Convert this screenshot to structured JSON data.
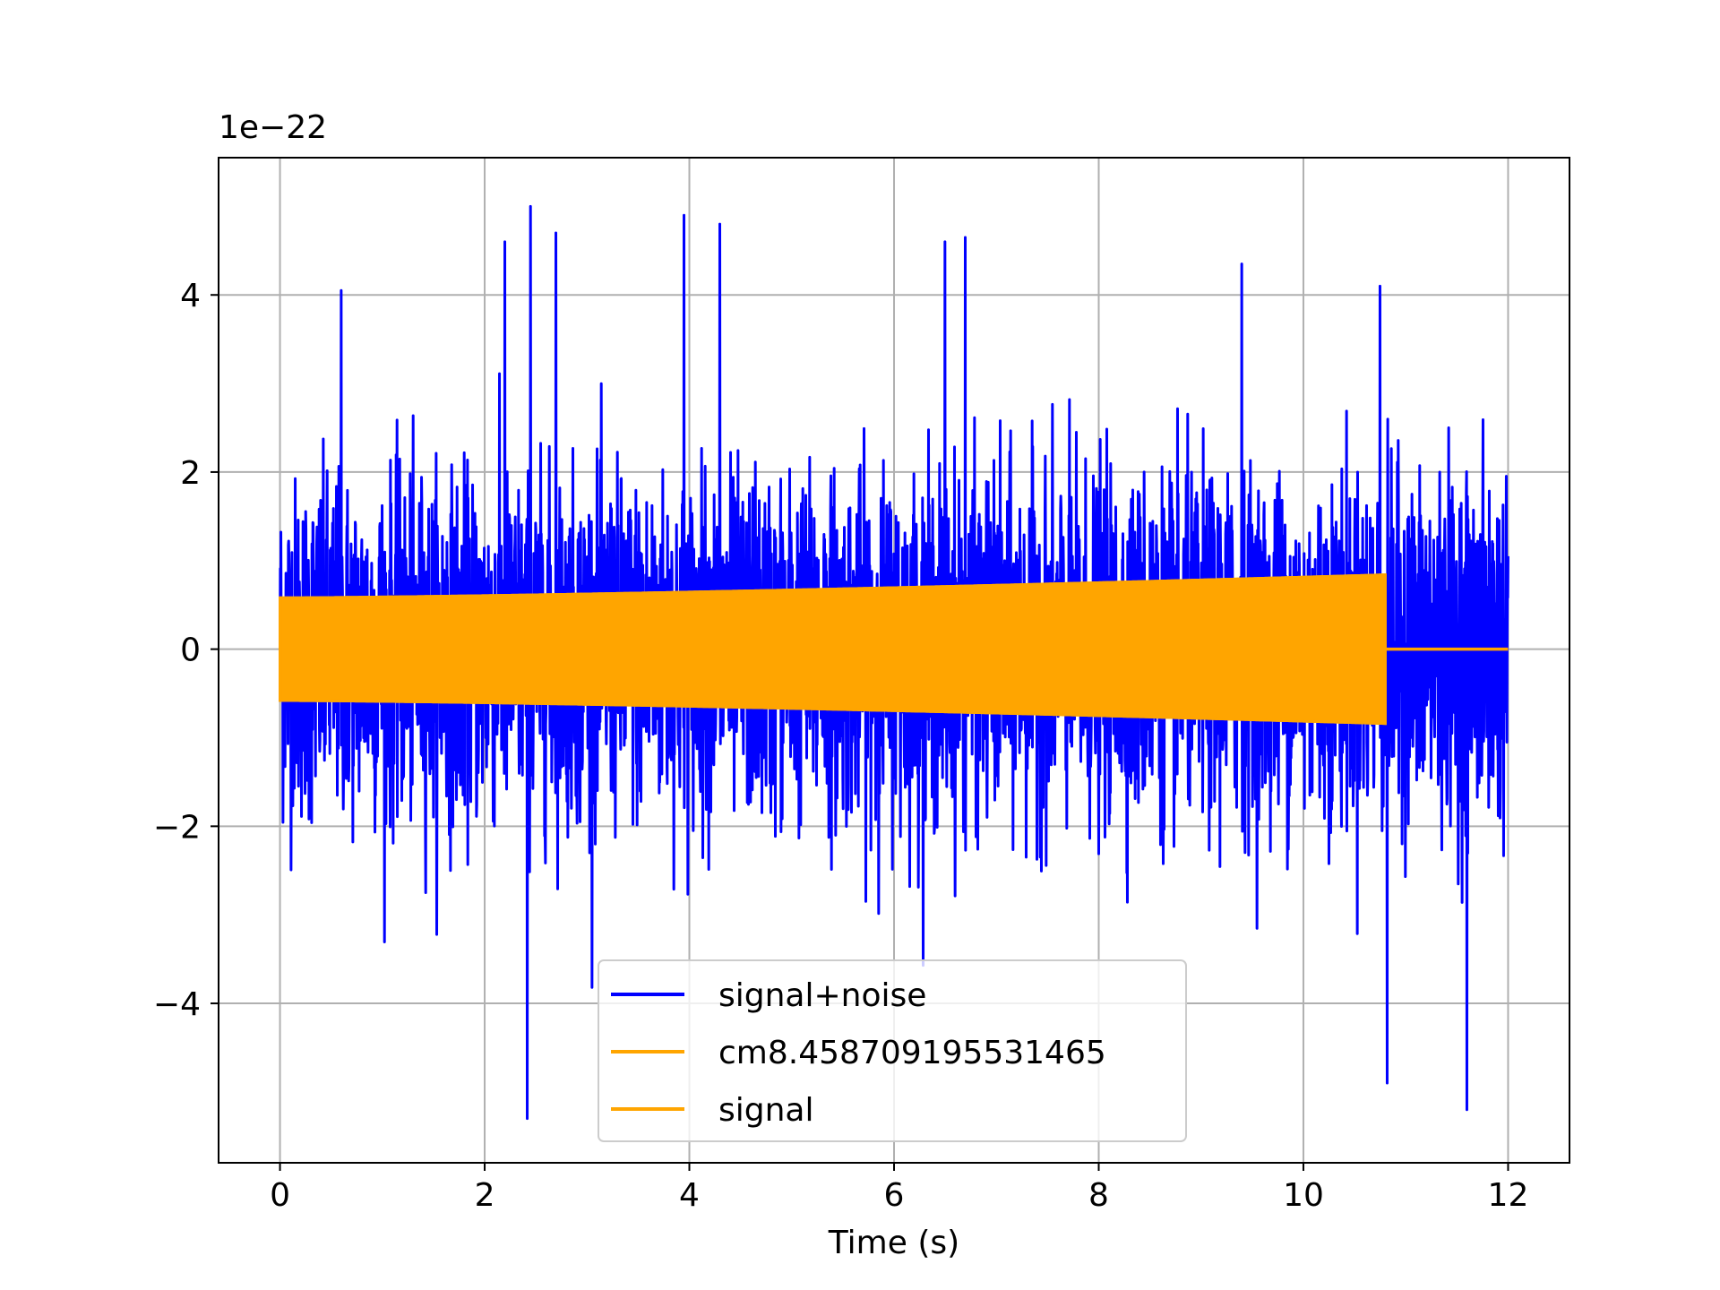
{
  "chart_data": {
    "type": "line",
    "title": "",
    "xlabel": "Time (s)",
    "ylabel": "",
    "y_offset_label": "1e−22",
    "xlim": [
      -0.6,
      12.6
    ],
    "ylim": [
      -5.8,
      5.55
    ],
    "x_ticks": [
      0,
      2,
      4,
      6,
      8,
      10,
      12
    ],
    "x_tick_labels": [
      "0",
      "2",
      "4",
      "6",
      "8",
      "10",
      "12"
    ],
    "y_ticks": [
      -4,
      -2,
      0,
      2,
      4
    ],
    "y_tick_labels": [
      "−4",
      "−2",
      "0",
      "2",
      "4"
    ],
    "grid": true,
    "legend_position": "lower-center",
    "series": [
      {
        "name": "signal+noise",
        "color": "#0000ff",
        "x_range": [
          0,
          12.0
        ],
        "typical_amplitude": 2.4,
        "peak_max": 5.0,
        "peak_min": -5.3,
        "notable_peaks": [
          {
            "x": 0.6,
            "y": 4.05
          },
          {
            "x": 2.2,
            "y": 4.6
          },
          {
            "x": 2.45,
            "y": 5.0
          },
          {
            "x": 2.42,
            "y": -5.3
          },
          {
            "x": 2.7,
            "y": 4.7
          },
          {
            "x": 3.95,
            "y": 4.9
          },
          {
            "x": 4.3,
            "y": 4.8
          },
          {
            "x": 6.5,
            "y": 4.6
          },
          {
            "x": 6.7,
            "y": 4.65
          },
          {
            "x": 9.4,
            "y": 4.35
          },
          {
            "x": 10.75,
            "y": 4.1
          },
          {
            "x": 10.82,
            "y": -4.9
          },
          {
            "x": 11.6,
            "y": -5.2
          }
        ]
      },
      {
        "name": "cm8.458709195531465",
        "color": "#ffa500",
        "x_range": [
          0,
          10.8
        ],
        "amplitude_start": 0.58,
        "amplitude_end": 0.84
      },
      {
        "name": "signal",
        "color": "#ffa500",
        "x_range": [
          0,
          12.0
        ],
        "amplitude_start": 0.58,
        "amplitude_end": 0.84,
        "active_until": 10.8,
        "value_after": 0
      }
    ]
  }
}
